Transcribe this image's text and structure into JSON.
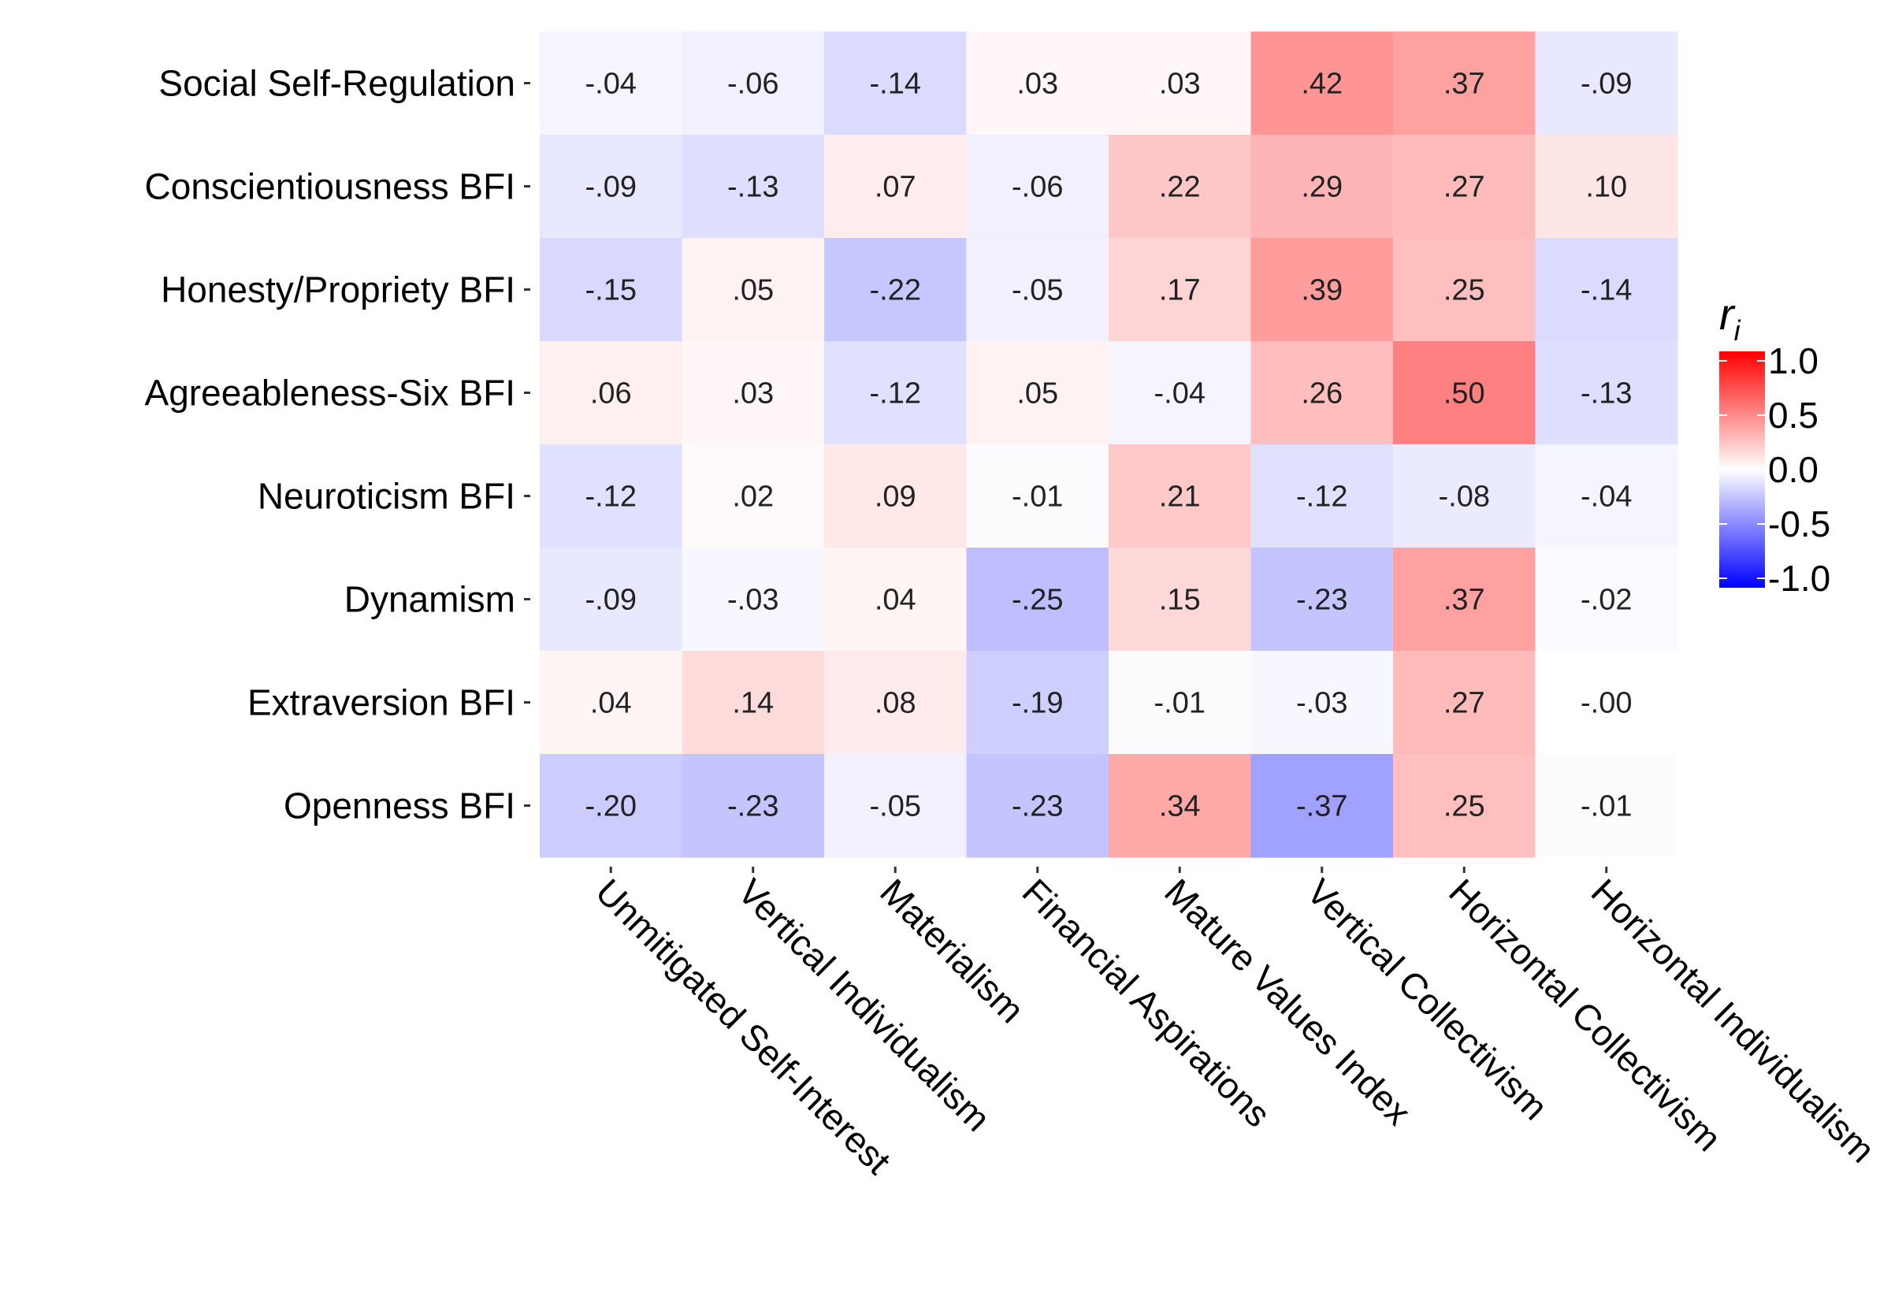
{
  "chart_data": {
    "type": "heatmap",
    "rows": [
      "Social Self-Regulation",
      "Conscientiousness BFI",
      "Honesty/Propriety BFI",
      "Agreeableness-Six BFI",
      "Neuroticism BFI",
      "Dynamism",
      "Extraversion BFI",
      "Openness BFI"
    ],
    "columns": [
      "Unmitigated Self-Interest",
      "Vertical Individualism",
      "Materialism",
      "Financial Aspirations",
      "Mature Values Index",
      "Vertical Collectivism",
      "Horizontal Collectivism",
      "Horizontal Individualism"
    ],
    "values": [
      [
        -0.04,
        -0.06,
        -0.14,
        0.03,
        0.03,
        0.42,
        0.37,
        -0.09
      ],
      [
        -0.09,
        -0.13,
        0.07,
        -0.06,
        0.22,
        0.29,
        0.27,
        0.1
      ],
      [
        -0.15,
        0.05,
        -0.22,
        -0.05,
        0.17,
        0.39,
        0.25,
        -0.14
      ],
      [
        0.06,
        0.03,
        -0.12,
        0.05,
        -0.04,
        0.26,
        0.5,
        -0.13
      ],
      [
        -0.12,
        0.02,
        0.09,
        -0.01,
        0.21,
        -0.12,
        -0.08,
        -0.04
      ],
      [
        -0.09,
        -0.03,
        0.04,
        -0.25,
        0.15,
        -0.23,
        0.37,
        -0.02
      ],
      [
        0.04,
        0.14,
        0.08,
        -0.19,
        -0.01,
        -0.03,
        0.27,
        -0.0
      ],
      [
        -0.2,
        -0.23,
        -0.05,
        -0.23,
        0.34,
        -0.37,
        0.25,
        -0.01
      ]
    ],
    "labels": [
      [
        "-.04",
        "-.06",
        "-.14",
        ".03",
        ".03",
        ".42",
        ".37",
        "-.09"
      ],
      [
        "-.09",
        "-.13",
        ".07",
        "-.06",
        ".22",
        ".29",
        ".27",
        ".10"
      ],
      [
        "-.15",
        ".05",
        "-.22",
        "-.05",
        ".17",
        ".39",
        ".25",
        "-.14"
      ],
      [
        ".06",
        ".03",
        "-.12",
        ".05",
        "-.04",
        ".26",
        ".50",
        "-.13"
      ],
      [
        "-.12",
        ".02",
        ".09",
        "-.01",
        ".21",
        "-.12",
        "-.08",
        "-.04"
      ],
      [
        "-.09",
        "-.03",
        ".04",
        "-.25",
        ".15",
        "-.23",
        ".37",
        "-.02"
      ],
      [
        ".04",
        ".14",
        ".08",
        "-.19",
        "-.01",
        "-.03",
        ".27",
        "-.00"
      ],
      [
        "-.20",
        "-.23",
        "-.05",
        "-.23",
        ".34",
        "-.37",
        ".25",
        "-.01"
      ]
    ],
    "legend": {
      "title": "r",
      "title_subscript": "i",
      "ticks": [
        "1.0",
        "0.5",
        "0.0",
        "-0.5",
        "-1.0"
      ],
      "tick_values": [
        1.0,
        0.5,
        0.0,
        -0.5,
        -1.0
      ],
      "range": [
        -1.0,
        1.0
      ],
      "colors": {
        "low": "#0000ff",
        "mid": "#ffffff",
        "high": "#ff0000"
      },
      "placement": "right"
    },
    "grid": false
  }
}
